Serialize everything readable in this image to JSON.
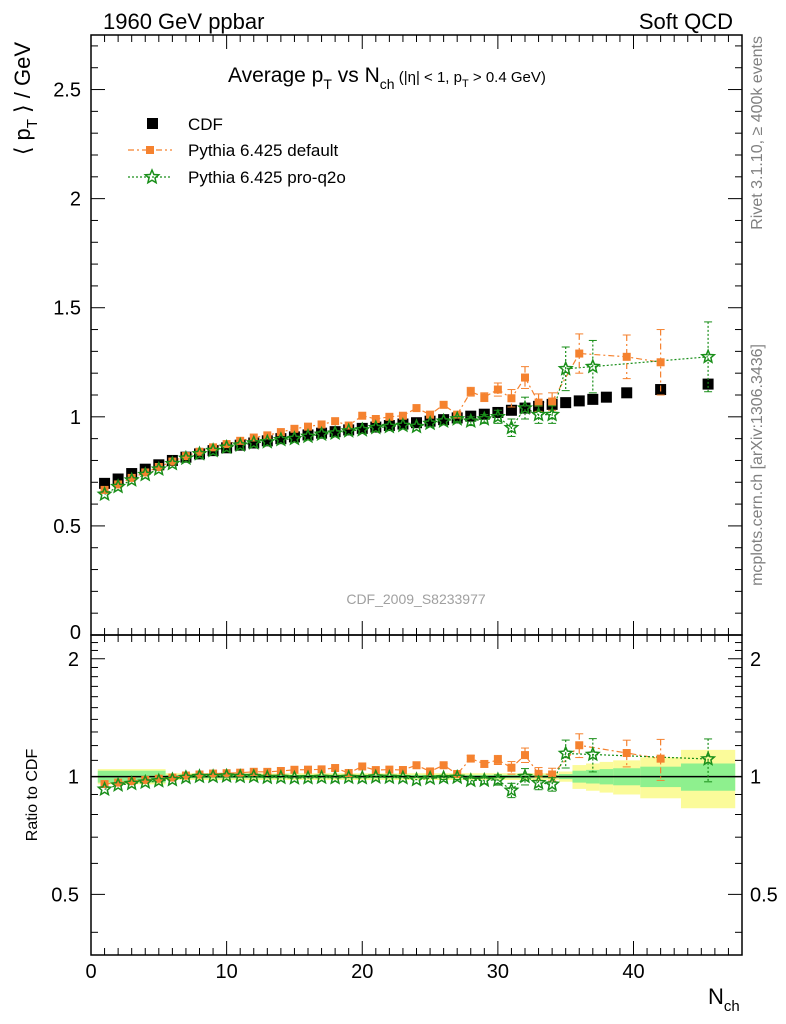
{
  "header": {
    "left_label": "1960 GeV ppbar",
    "right_label": "Soft QCD"
  },
  "side_labels": {
    "rivet": "Rivet 3.1.10, ≥ 400k events",
    "mcplots": "mcplots.cern.ch [arXiv:1306.3436]"
  },
  "plot_title": {
    "main_a": "Average p",
    "main_sub_a": "T",
    "main_b": " vs N",
    "main_sub_b": "ch",
    "cut_a": " (|η| < 1, p",
    "cut_sub": "T",
    "cut_b": " > 0.4 GeV)"
  },
  "watermark": "CDF_2009_S8233977",
  "axes": {
    "ylabel_main": "⟨ p",
    "ylabel_main_sub": "T",
    "ylabel_main_tail": " ⟩ / GeV",
    "ylabel_ratio": "Ratio to CDF",
    "xlabel": "N",
    "xlabel_sub": "ch"
  },
  "legend": {
    "cdf": "CDF",
    "pythia_default": "Pythia 6.425 default",
    "pythia_proq2o": "Pythia 6.425 pro-q2o"
  },
  "colors": {
    "cdf": "#000000",
    "pythia_default": "#f5822f",
    "pythia_proq2o": "#1a8f1a",
    "band_inner": "#8ef08e",
    "band_outer": "#fbfb9a"
  },
  "chart_data": {
    "type": "scatter",
    "xlim": [
      0,
      48
    ],
    "ylim": [
      0,
      2.75
    ],
    "ratio_ylim": [
      0.35,
      2.3
    ],
    "x_ticks": [
      0,
      10,
      20,
      30,
      40
    ],
    "y_ticks": [
      0.5,
      1,
      1.5,
      2,
      2.5
    ],
    "ratio_ticks": [
      0.5,
      1,
      2
    ],
    "x_tick_labels": [
      "0",
      "10",
      "20",
      "30",
      "40"
    ],
    "y_tick_labels": [
      "0.5",
      "1",
      "1.5",
      "2",
      "2.5"
    ],
    "ratio_tick_labels": [
      "0.5",
      "1",
      "2"
    ],
    "series": [
      {
        "name": "CDF",
        "x": [
          1,
          2,
          3,
          4,
          5,
          6,
          7,
          8,
          9,
          10,
          11,
          12,
          13,
          14,
          15,
          16,
          17,
          18,
          19,
          20,
          21,
          22,
          23,
          24,
          25,
          26,
          27,
          28,
          29,
          30,
          31,
          32,
          33,
          34,
          35,
          36,
          37,
          38,
          39.5,
          42,
          45.5
        ],
        "y": [
          0.695,
          0.715,
          0.74,
          0.76,
          0.78,
          0.8,
          0.815,
          0.83,
          0.845,
          0.858,
          0.87,
          0.88,
          0.89,
          0.9,
          0.908,
          0.917,
          0.925,
          0.932,
          0.94,
          0.947,
          0.953,
          0.96,
          0.967,
          0.973,
          0.98,
          0.987,
          0.995,
          1.003,
          1.012,
          1.02,
          1.03,
          1.04,
          1.048,
          1.057,
          1.065,
          1.073,
          1.08,
          1.09,
          1.11,
          1.125,
          1.15
        ]
      },
      {
        "name": "Pythia 6.425 default",
        "x": [
          1,
          2,
          3,
          4,
          5,
          6,
          7,
          8,
          9,
          10,
          11,
          12,
          13,
          14,
          15,
          16,
          17,
          18,
          19,
          20,
          21,
          22,
          23,
          24,
          25,
          26,
          27,
          28,
          29,
          30,
          31,
          32,
          33,
          34,
          36,
          39.5,
          42
        ],
        "y": [
          0.665,
          0.69,
          0.72,
          0.745,
          0.77,
          0.795,
          0.82,
          0.84,
          0.86,
          0.875,
          0.89,
          0.905,
          0.915,
          0.93,
          0.945,
          0.955,
          0.965,
          0.98,
          0.96,
          1.005,
          0.99,
          1.0,
          1.005,
          1.04,
          1.01,
          1.055,
          1.01,
          1.115,
          1.09,
          1.125,
          1.085,
          1.18,
          1.065,
          1.07,
          1.29,
          1.275,
          1.25
        ],
        "err": [
          0.005,
          0.005,
          0.005,
          0.005,
          0.005,
          0.005,
          0.005,
          0.005,
          0.005,
          0.005,
          0.005,
          0.005,
          0.005,
          0.005,
          0.005,
          0.005,
          0.005,
          0.005,
          0.005,
          0.005,
          0.005,
          0.005,
          0.006,
          0.008,
          0.008,
          0.01,
          0.012,
          0.02,
          0.02,
          0.03,
          0.04,
          0.05,
          0.04,
          0.04,
          0.09,
          0.1,
          0.15
        ]
      },
      {
        "name": "Pythia 6.425 pro-q2o",
        "x": [
          1,
          2,
          3,
          4,
          5,
          6,
          7,
          8,
          9,
          10,
          11,
          12,
          13,
          14,
          15,
          16,
          17,
          18,
          19,
          20,
          21,
          22,
          23,
          24,
          25,
          26,
          27,
          28,
          29,
          30,
          31,
          32,
          33,
          34,
          35,
          37,
          45.5
        ],
        "y": [
          0.645,
          0.68,
          0.71,
          0.735,
          0.76,
          0.785,
          0.81,
          0.83,
          0.845,
          0.86,
          0.87,
          0.88,
          0.885,
          0.895,
          0.9,
          0.91,
          0.92,
          0.925,
          0.935,
          0.94,
          0.95,
          0.955,
          0.96,
          0.955,
          0.97,
          0.98,
          0.99,
          0.98,
          0.99,
          1.0,
          0.95,
          1.04,
          1.01,
          1.01,
          1.22,
          1.23,
          1.275
        ],
        "err": [
          0.005,
          0.005,
          0.005,
          0.005,
          0.005,
          0.005,
          0.005,
          0.005,
          0.005,
          0.005,
          0.005,
          0.005,
          0.005,
          0.005,
          0.005,
          0.005,
          0.005,
          0.005,
          0.005,
          0.005,
          0.005,
          0.005,
          0.006,
          0.008,
          0.008,
          0.01,
          0.012,
          0.02,
          0.02,
          0.03,
          0.04,
          0.05,
          0.04,
          0.04,
          0.1,
          0.12,
          0.16
        ]
      }
    ],
    "ratio_band": {
      "x_edges": [
        0.5,
        5.5,
        34.5,
        35.5,
        36.5,
        37.5,
        38.5,
        40.5,
        43.5,
        47.5
      ],
      "inner": [
        0.035,
        0.01,
        0.015,
        0.035,
        0.04,
        0.045,
        0.05,
        0.06,
        0.08
      ],
      "outer": [
        0.045,
        0.02,
        0.03,
        0.07,
        0.08,
        0.09,
        0.1,
        0.12,
        0.17
      ]
    }
  }
}
